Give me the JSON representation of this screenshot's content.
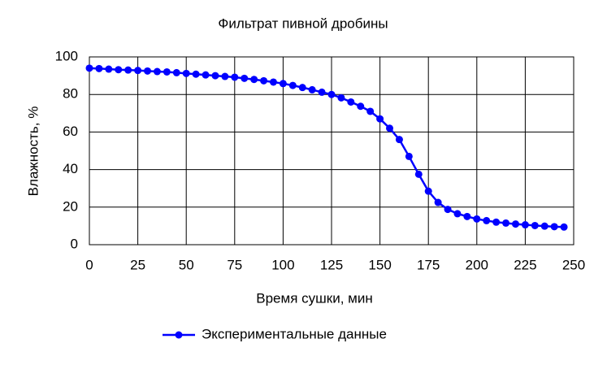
{
  "chart_data": {
    "type": "line",
    "title": "Фильтрат пивной дробины",
    "xlabel": "Время сушки, мин",
    "ylabel": "Влажность, %",
    "x": [
      0,
      5,
      10,
      15,
      20,
      25,
      30,
      35,
      40,
      45,
      50,
      55,
      60,
      65,
      70,
      75,
      80,
      85,
      90,
      95,
      100,
      105,
      110,
      115,
      120,
      125,
      130,
      135,
      140,
      145,
      150,
      155,
      160,
      165,
      170,
      175,
      180,
      185,
      190,
      195,
      200,
      205,
      210,
      215,
      220,
      225,
      230,
      235,
      240,
      245
    ],
    "series": [
      {
        "name": "Экспериментальные данные",
        "color": "#0000ff",
        "values": [
          94,
          93.8,
          93.5,
          93.2,
          93,
          92.8,
          92.5,
          92.2,
          92,
          91.6,
          91.2,
          90.8,
          90.4,
          90,
          89.6,
          89.2,
          88.6,
          88,
          87.3,
          86.6,
          85.8,
          84.8,
          83.7,
          82.5,
          81.2,
          80,
          78.2,
          76,
          73.7,
          71,
          67,
          62,
          56,
          47,
          37.5,
          28.5,
          22.5,
          18.8,
          16.5,
          15,
          13.7,
          12.8,
          12,
          11.5,
          11,
          10.6,
          10.2,
          9.9,
          9.6,
          9.4
        ]
      }
    ],
    "xlim": [
      0,
      250
    ],
    "xticks": [
      0,
      25,
      50,
      75,
      100,
      125,
      150,
      175,
      200,
      225,
      250
    ],
    "ylim": [
      0,
      100
    ],
    "yticks": [
      0,
      20,
      40,
      60,
      80,
      100
    ],
    "grid": true,
    "legend": "bottom"
  }
}
